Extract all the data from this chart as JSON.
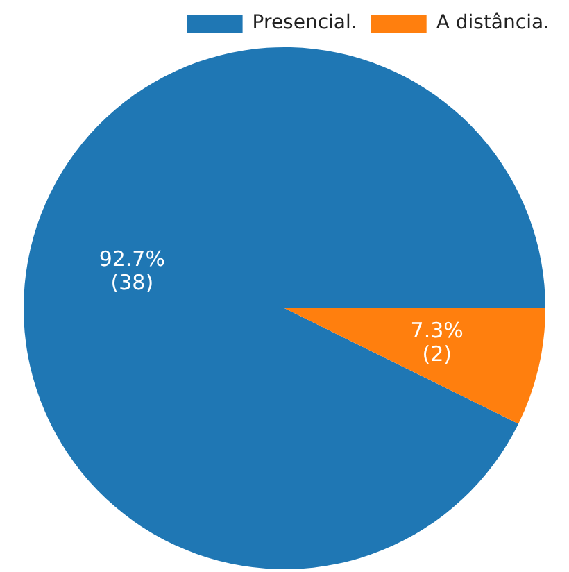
{
  "chart_data": {
    "type": "pie",
    "categories": [
      "Presencial.",
      "A distância."
    ],
    "values": [
      92.7,
      7.3
    ],
    "colors": [
      "#1f77b4",
      "#ff7f0e"
    ],
    "value_labels": [
      "92.7%\n(38)",
      "7.3%\n(2)"
    ],
    "legend": "top right"
  }
}
